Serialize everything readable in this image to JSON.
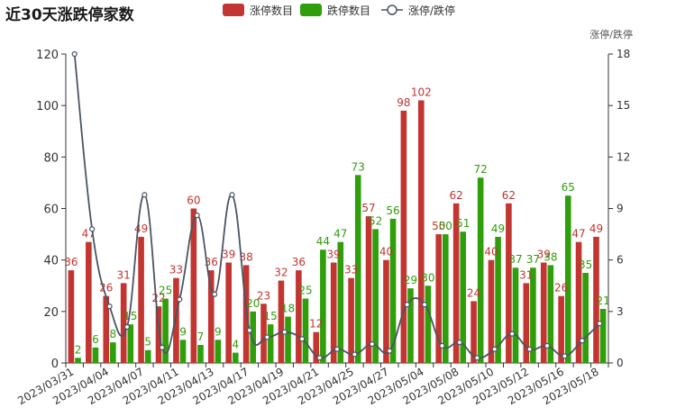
{
  "chart_data": {
    "type": "bar",
    "title": "近30天涨跌停家数",
    "categories": [
      "2023/03/31",
      "2023/04/03",
      "2023/04/04",
      "2023/04/06",
      "2023/04/07",
      "2023/04/10",
      "2023/04/11",
      "2023/04/12",
      "2023/04/13",
      "2023/04/14",
      "2023/04/17",
      "2023/04/18",
      "2023/04/19",
      "2023/04/20",
      "2023/04/21",
      "2023/04/24",
      "2023/04/25",
      "2023/04/26",
      "2023/04/27",
      "2023/04/28",
      "2023/05/04",
      "2023/05/05",
      "2023/05/08",
      "2023/05/09",
      "2023/05/10",
      "2023/05/11",
      "2023/05/12",
      "2023/05/15",
      "2023/05/16",
      "2023/05/17",
      "2023/05/18"
    ],
    "x_tick_labels_shown": [
      "2023/03/31",
      "2023/04/04",
      "2023/04/07",
      "2023/04/11",
      "2023/04/13",
      "2023/04/17",
      "2023/04/19",
      "2023/04/21",
      "2023/04/25",
      "2023/04/27",
      "2023/05/04",
      "2023/05/08",
      "2023/05/10",
      "2023/05/12",
      "2023/05/16",
      "2023/05/18"
    ],
    "series": [
      {
        "name": "涨停数目",
        "type": "bar",
        "color": "#c23531",
        "values": [
          36,
          47,
          26,
          31,
          49,
          22,
          33,
          60,
          36,
          39,
          38,
          23,
          32,
          36,
          12,
          39,
          33,
          57,
          40,
          98,
          102,
          50,
          62,
          24,
          40,
          62,
          31,
          39,
          26,
          47,
          49
        ]
      },
      {
        "name": "跌停数目",
        "type": "bar",
        "color": "#2f9e0b",
        "values": [
          2,
          6,
          8,
          15,
          5,
          25,
          9,
          7,
          9,
          4,
          20,
          15,
          18,
          25,
          44,
          47,
          73,
          52,
          56,
          29,
          30,
          50,
          51,
          72,
          49,
          37,
          37,
          38,
          65,
          35,
          21
        ]
      },
      {
        "name": "涨停/跌停",
        "type": "line",
        "axis": "right",
        "color": "#4b5563",
        "values": [
          18,
          7.8,
          3.3,
          2.1,
          9.8,
          0.9,
          3.7,
          8.6,
          4,
          9.8,
          1.9,
          1.5,
          1.8,
          1.4,
          0.3,
          0.8,
          0.5,
          1.1,
          0.7,
          3.4,
          3.4,
          1,
          1.2,
          0.3,
          0.8,
          1.7,
          0.8,
          1,
          0.4,
          1.3,
          2.3
        ]
      }
    ],
    "y_left": {
      "min": 0,
      "max": 120,
      "ticks": [
        0,
        20,
        40,
        60,
        80,
        100,
        120
      ]
    },
    "y_right": {
      "label": "涨停/跌停",
      "min": 0,
      "max": 18,
      "ticks": [
        0,
        3,
        6,
        9,
        12,
        15,
        18
      ]
    },
    "legend_position": "top-center",
    "grid": false
  }
}
